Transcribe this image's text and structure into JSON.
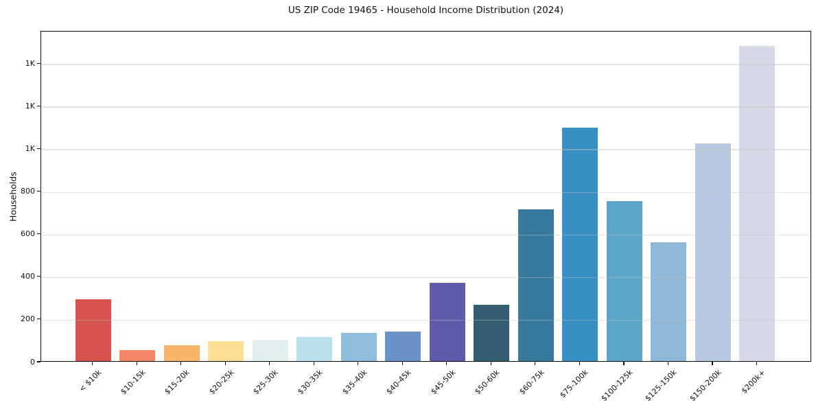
{
  "chart_data": {
    "type": "bar",
    "title": "US ZIP Code 19465 - Household Income Distribution (2024)",
    "xlabel": "",
    "ylabel": "Households",
    "categories": [
      "< $10k",
      "$10-15k",
      "$15-20k",
      "$20-25k",
      "$25-30k",
      "$30-35k",
      "$35-40k",
      "$40-45k",
      "$45-50k",
      "$50-60k",
      "$60-75k",
      "$75-100k",
      "$100-125k",
      "$125-150k",
      "$150-200k",
      "$200k+"
    ],
    "values": [
      290,
      50,
      73,
      93,
      100,
      114,
      131,
      140,
      368,
      265,
      712,
      1096,
      750,
      558,
      1022,
      1478
    ],
    "bar_colors": [
      "#d6544d",
      "#f58767",
      "#f9b469",
      "#fcdf92",
      "#e2f0f2",
      "#bcdfed",
      "#8fbedd",
      "#6b92c8",
      "#5c5cab",
      "#345d70",
      "#387a9e",
      "#378fc4",
      "#5ba5c9",
      "#8fb7d8",
      "#b7c8e0",
      "#d8d9e8"
    ],
    "ylim": [
      0,
      1552
    ],
    "yticks": {
      "values": [
        0,
        200,
        400,
        600,
        800,
        1000,
        1200,
        1400
      ],
      "labels": [
        "0",
        "200",
        "400",
        "600",
        "800",
        "1K",
        "1K",
        "1K"
      ]
    },
    "grid": "horizontal",
    "legend": "none"
  },
  "colors": {
    "background": "#ffffff",
    "axis_frame": "#0a0a0a",
    "gridline": "#e2e2e2",
    "text": "#111111"
  }
}
